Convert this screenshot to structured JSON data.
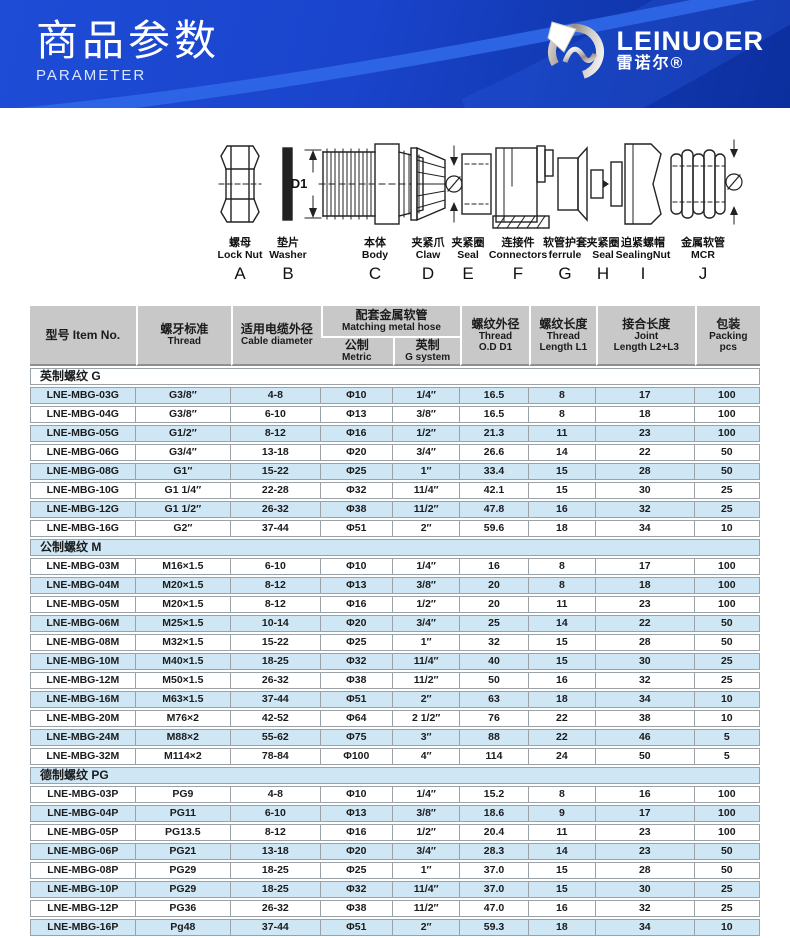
{
  "banner": {
    "title": "商品参数",
    "subtitle": "PARAMETER",
    "brand_en": "LEINUOER",
    "brand_cn": "雷诺尔®"
  },
  "theme": {
    "banner_blue": "#1a44cc",
    "swoosh_blue": "#2e66e6",
    "header_gray": "#c8c8c8",
    "row_alt_blue": "#cfe7f5"
  },
  "diagram": {
    "d1_label": "D1",
    "parts": [
      {
        "letter": "A",
        "cn": "螺母",
        "en": "Lock Nut"
      },
      {
        "letter": "B",
        "cn": "垫片",
        "en": "Washer"
      },
      {
        "letter": "C",
        "cn": "本体",
        "en": "Body"
      },
      {
        "letter": "D",
        "cn": "夹紧爪",
        "en": "Claw"
      },
      {
        "letter": "E",
        "cn": "夹紧圈",
        "en": "Seal"
      },
      {
        "letter": "F",
        "cn": "连接件",
        "en": "Connectors"
      },
      {
        "letter": "G",
        "cn": "软管护套",
        "en": "ferrule"
      },
      {
        "letter": "H",
        "cn": "夹紧圈",
        "en": "Seal"
      },
      {
        "letter": "I",
        "cn": "迫紧螺帽",
        "en": "SealingNut"
      },
      {
        "letter": "J",
        "cn": "金属软管",
        "en": "MCR"
      }
    ]
  },
  "table": {
    "headers": {
      "item_no": "型号 Item No.",
      "thread_cn": "螺牙标准",
      "thread_en": "Thread",
      "cable_cn": "适用电缆外径",
      "cable_en": "Cable diameter",
      "hose_cn": "配套金属软管",
      "hose_en": "Matching metal hose",
      "metric_cn": "公制",
      "metric_en": "Metric",
      "gsys_cn": "英制",
      "gsys_en": "G system",
      "od_cn": "螺纹外径",
      "od_en1": "Thread",
      "od_en2": "O.D D1",
      "l1_cn": "螺纹长度",
      "l1_en1": "Thread",
      "l1_en2": "Length L1",
      "joint_cn": "接合长度",
      "joint_en1": "Joint",
      "joint_en2": "Length L2+L3",
      "pack_cn": "包装",
      "pack_en1": "Packing",
      "pack_en2": "pcs"
    },
    "col_keys": [
      "item-no",
      "thread",
      "cable-diameter",
      "metric",
      "g-system",
      "thread-od",
      "thread-length-l1",
      "joint-length",
      "packing-pcs"
    ],
    "sections": [
      {
        "title": "英制螺纹 G",
        "rows": [
          [
            "LNE-MBG-03G",
            "G3/8″",
            "4-8",
            "Φ10",
            "1/4″",
            "16.5",
            "8",
            "17",
            "100"
          ],
          [
            "LNE-MBG-04G",
            "G3/8″",
            "6-10",
            "Φ13",
            "3/8″",
            "16.5",
            "8",
            "18",
            "100"
          ],
          [
            "LNE-MBG-05G",
            "G1/2″",
            "8-12",
            "Φ16",
            "1/2″",
            "21.3",
            "11",
            "23",
            "100"
          ],
          [
            "LNE-MBG-06G",
            "G3/4″",
            "13-18",
            "Φ20",
            "3/4″",
            "26.6",
            "14",
            "22",
            "50"
          ],
          [
            "LNE-MBG-08G",
            "G1″",
            "15-22",
            "Φ25",
            "1″",
            "33.4",
            "15",
            "28",
            "50"
          ],
          [
            "LNE-MBG-10G",
            "G1 1/4″",
            "22-28",
            "Φ32",
            "11/4″",
            "42.1",
            "15",
            "30",
            "25"
          ],
          [
            "LNE-MBG-12G",
            "G1 1/2″",
            "26-32",
            "Φ38",
            "11/2″",
            "47.8",
            "16",
            "32",
            "25"
          ],
          [
            "LNE-MBG-16G",
            "G2″",
            "37-44",
            "Φ51",
            "2″",
            "59.6",
            "18",
            "34",
            "10"
          ]
        ]
      },
      {
        "title": "公制螺纹 M",
        "rows": [
          [
            "LNE-MBG-03M",
            "M16×1.5",
            "6-10",
            "Φ10",
            "1/4″",
            "16",
            "8",
            "17",
            "100"
          ],
          [
            "LNE-MBG-04M",
            "M20×1.5",
            "8-12",
            "Φ13",
            "3/8″",
            "20",
            "8",
            "18",
            "100"
          ],
          [
            "LNE-MBG-05M",
            "M20×1.5",
            "8-12",
            "Φ16",
            "1/2″",
            "20",
            "11",
            "23",
            "100"
          ],
          [
            "LNE-MBG-06M",
            "M25×1.5",
            "10-14",
            "Φ20",
            "3/4″",
            "25",
            "14",
            "22",
            "50"
          ],
          [
            "LNE-MBG-08M",
            "M32×1.5",
            "15-22",
            "Φ25",
            "1″",
            "32",
            "15",
            "28",
            "50"
          ],
          [
            "LNE-MBG-10M",
            "M40×1.5",
            "18-25",
            "Φ32",
            "11/4″",
            "40",
            "15",
            "30",
            "25"
          ],
          [
            "LNE-MBG-12M",
            "M50×1.5",
            "26-32",
            "Φ38",
            "11/2″",
            "50",
            "16",
            "32",
            "25"
          ],
          [
            "LNE-MBG-16M",
            "M63×1.5",
            "37-44",
            "Φ51",
            "2″",
            "63",
            "18",
            "34",
            "10"
          ],
          [
            "LNE-MBG-20M",
            "M76×2",
            "42-52",
            "Φ64",
            "2 1/2″",
            "76",
            "22",
            "38",
            "10"
          ],
          [
            "LNE-MBG-24M",
            "M88×2",
            "55-62",
            "Φ75",
            "3″",
            "88",
            "22",
            "46",
            "5"
          ],
          [
            "LNE-MBG-32M",
            "M114×2",
            "78-84",
            "Φ100",
            "4″",
            "114",
            "24",
            "50",
            "5"
          ]
        ]
      },
      {
        "title": "德制螺纹 PG",
        "rows": [
          [
            "LNE-MBG-03P",
            "PG9",
            "4-8",
            "Φ10",
            "1/4″",
            "15.2",
            "8",
            "16",
            "100"
          ],
          [
            "LNE-MBG-04P",
            "PG11",
            "6-10",
            "Φ13",
            "3/8″",
            "18.6",
            "9",
            "17",
            "100"
          ],
          [
            "LNE-MBG-05P",
            "PG13.5",
            "8-12",
            "Φ16",
            "1/2″",
            "20.4",
            "11",
            "23",
            "100"
          ],
          [
            "LNE-MBG-06P",
            "PG21",
            "13-18",
            "Φ20",
            "3/4″",
            "28.3",
            "14",
            "23",
            "50"
          ],
          [
            "LNE-MBG-08P",
            "PG29",
            "18-25",
            "Φ25",
            "1″",
            "37.0",
            "15",
            "28",
            "50"
          ],
          [
            "LNE-MBG-10P",
            "PG29",
            "18-25",
            "Φ32",
            "11/4″",
            "37.0",
            "15",
            "30",
            "25"
          ],
          [
            "LNE-MBG-12P",
            "PG36",
            "26-32",
            "Φ38",
            "11/2″",
            "47.0",
            "16",
            "32",
            "25"
          ],
          [
            "LNE-MBG-16P",
            "Pg48",
            "37-44",
            "Φ51",
            "2″",
            "59.3",
            "18",
            "34",
            "10"
          ]
        ]
      }
    ]
  }
}
